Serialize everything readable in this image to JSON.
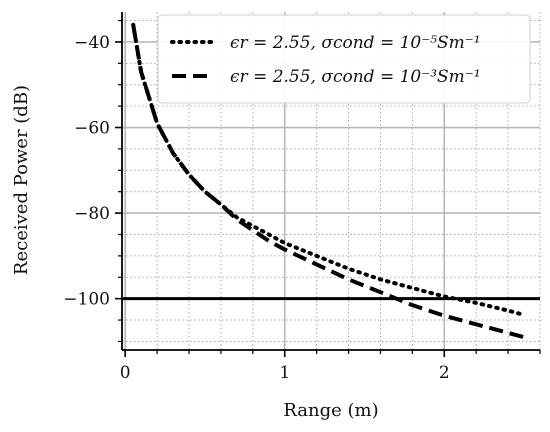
{
  "chart_data": {
    "type": "line",
    "xlabel": "Range (m)",
    "ylabel": "Received Power (dB)",
    "xlim": [
      -0.02,
      2.6
    ],
    "ylim": [
      -112,
      -33
    ],
    "xticks": [
      0,
      1,
      2
    ],
    "yticks": [
      -40,
      -60,
      -80,
      -100
    ],
    "grid": "major and minor",
    "legend_position": "top-right",
    "series": [
      {
        "name": "ϵr = 2.55, σcond = 10⁻⁵Sm⁻¹",
        "style": "dotted",
        "x": [
          0.05,
          0.1,
          0.2,
          0.3,
          0.4,
          0.5,
          0.6,
          0.7,
          0.8,
          0.9,
          1.0,
          1.2,
          1.4,
          1.6,
          1.8,
          2.0,
          2.2,
          2.4,
          2.5
        ],
        "y": [
          -36,
          -47,
          -59,
          -66,
          -71,
          -75,
          -78,
          -81,
          -83,
          -85,
          -87,
          -90,
          -93,
          -95.5,
          -97.5,
          -99.5,
          -101,
          -102.8,
          -103.8
        ]
      },
      {
        "name": "ϵr = 2.55, σcond = 10⁻³Sm⁻¹",
        "style": "dashed",
        "x": [
          0.05,
          0.1,
          0.2,
          0.3,
          0.4,
          0.5,
          0.6,
          0.7,
          0.8,
          0.9,
          1.0,
          1.2,
          1.4,
          1.6,
          1.8,
          2.0,
          2.2,
          2.4,
          2.5
        ],
        "y": [
          -36,
          -47,
          -59,
          -66,
          -71,
          -75,
          -78,
          -81.5,
          -84,
          -86.5,
          -88.5,
          -92,
          -95.5,
          -98.5,
          -101.5,
          -104,
          -106,
          -108,
          -109
        ]
      }
    ],
    "reference_line": {
      "y": -100,
      "style": "solid"
    }
  }
}
